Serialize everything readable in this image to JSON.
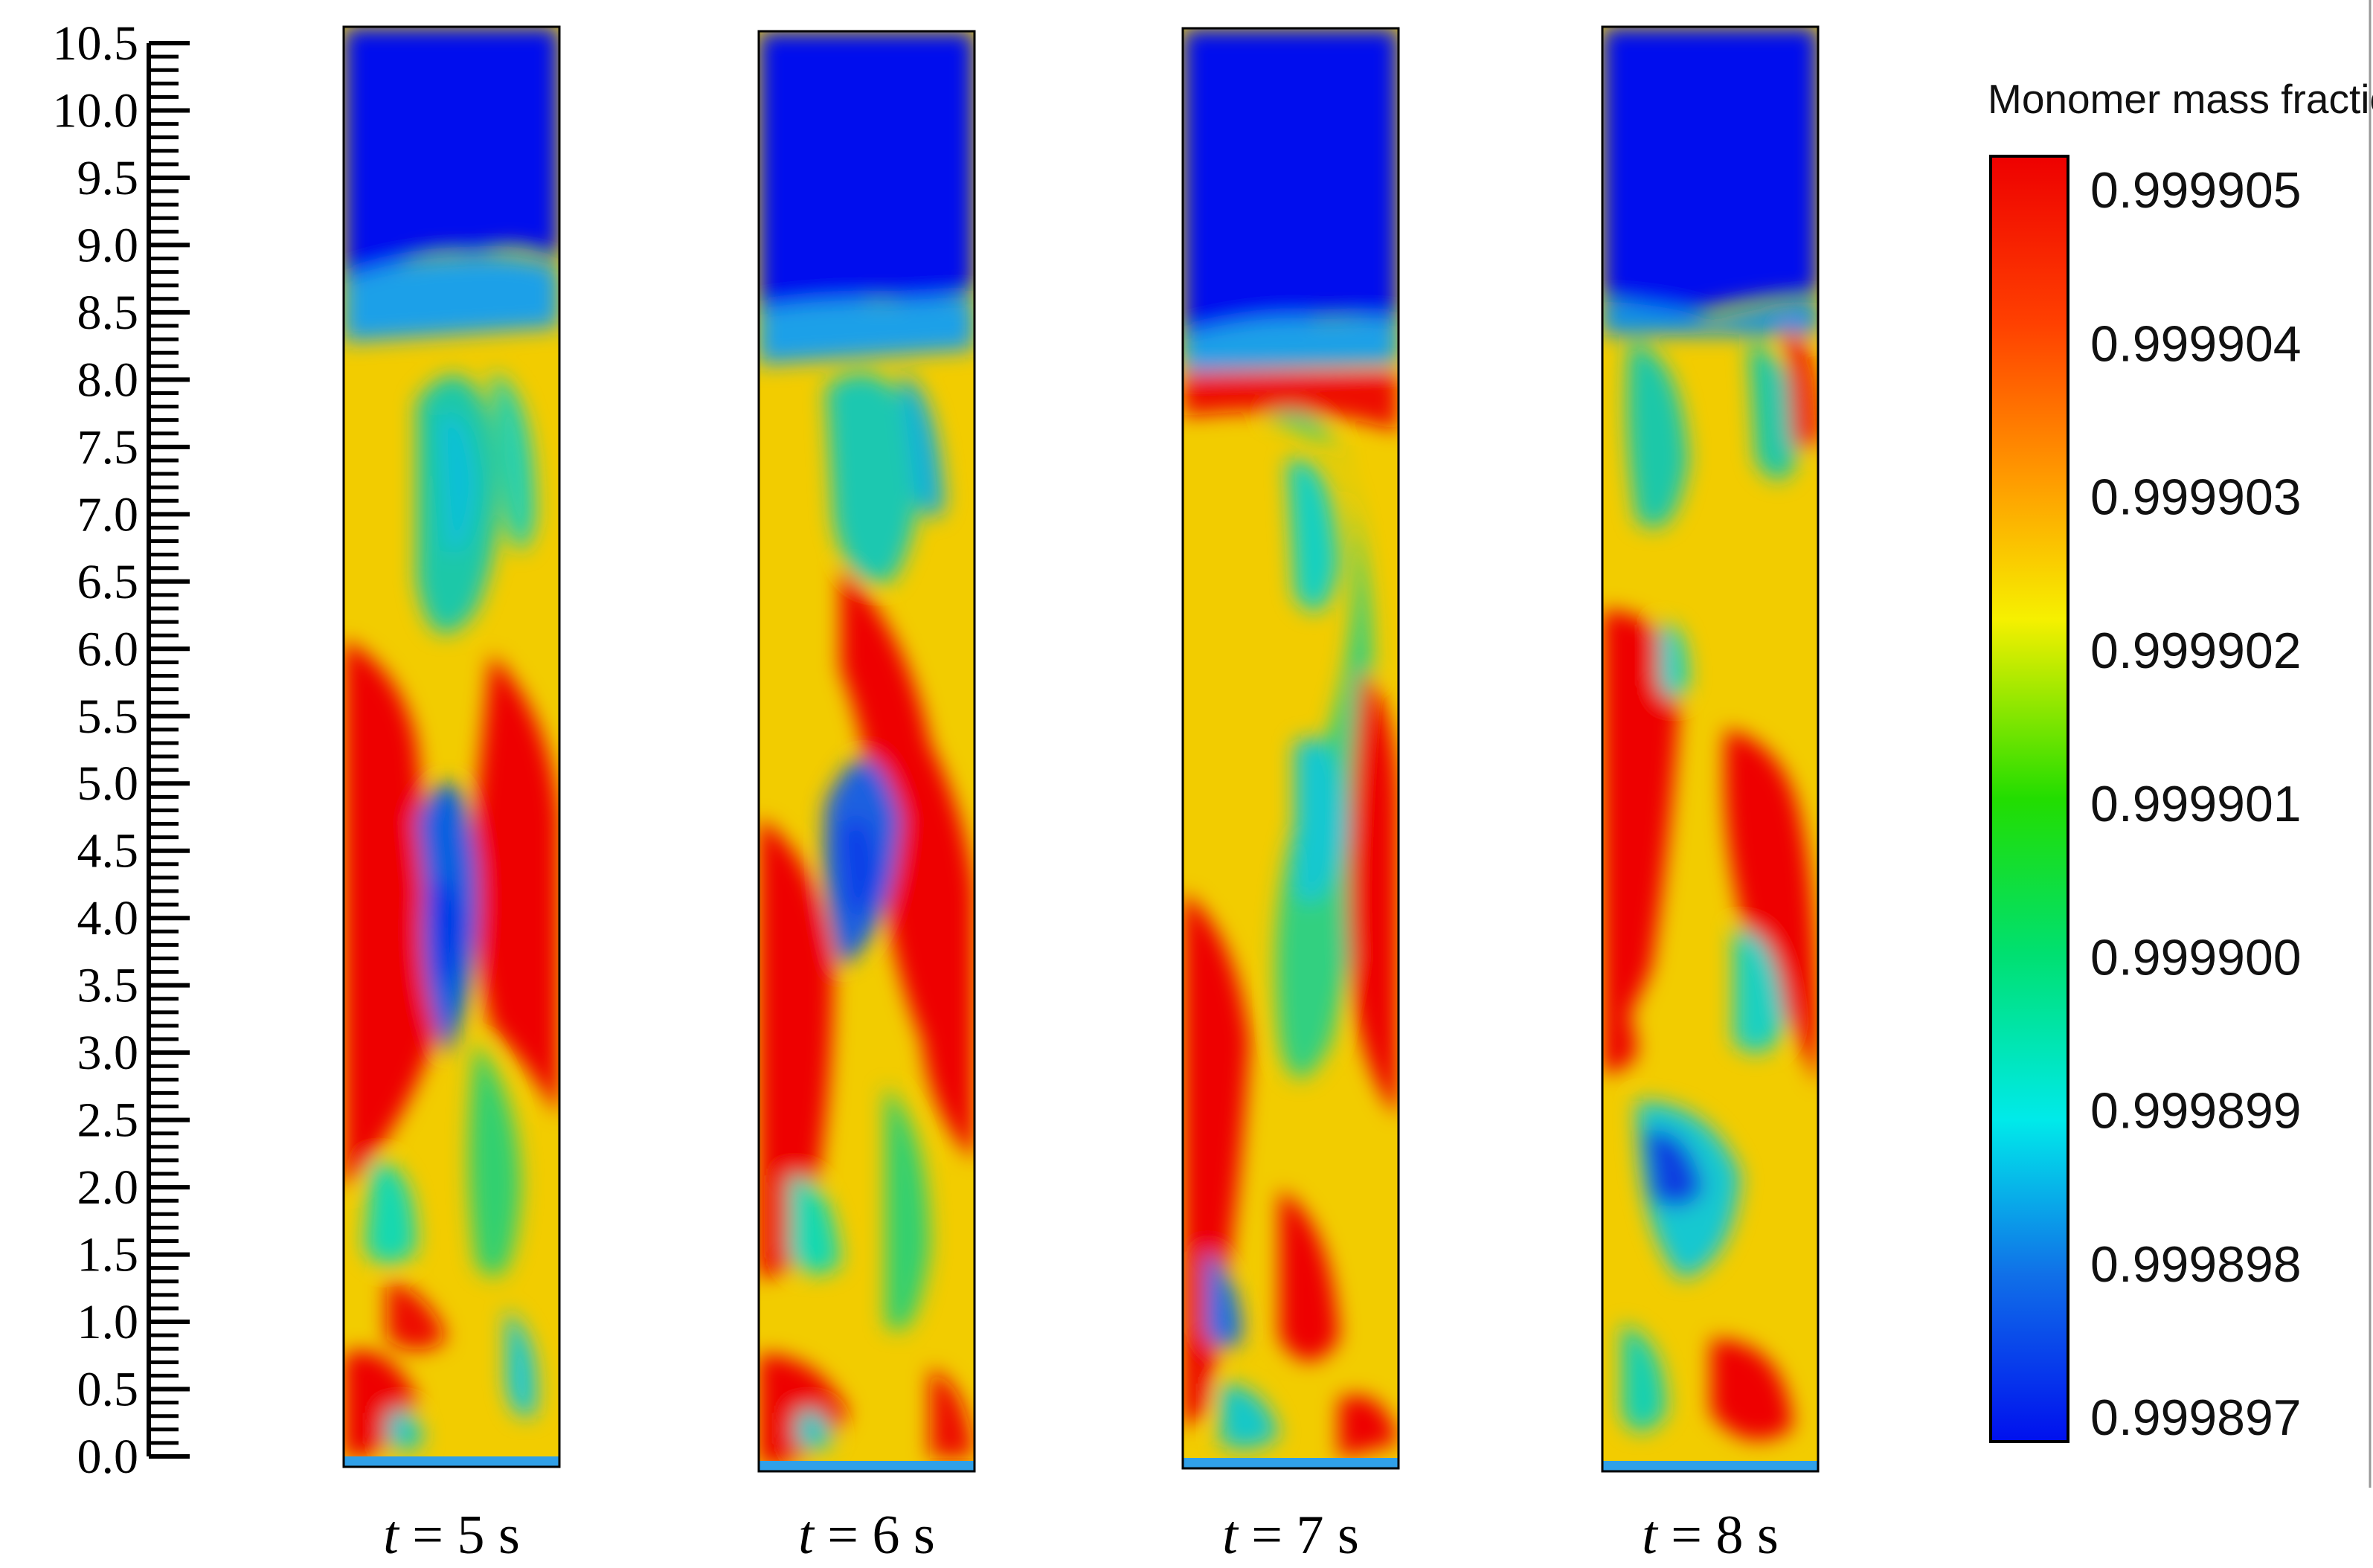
{
  "axis": {
    "ticks": [
      "10.5",
      "10.0",
      "9.5",
      "9.0",
      "8.5",
      "8.0",
      "7.5",
      "7.0",
      "6.5",
      "6.0",
      "5.5",
      "5.0",
      "4.5",
      "4.0",
      "3.5",
      "3.0",
      "2.5",
      "2.0",
      "1.5",
      "1.0",
      "0.5",
      "0.0"
    ]
  },
  "panels": [
    {
      "label_prefix": "t",
      "label_suffix": " = 5 s"
    },
    {
      "label_prefix": "t",
      "label_suffix": " = 6 s"
    },
    {
      "label_prefix": "t",
      "label_suffix": " = 7 s"
    },
    {
      "label_prefix": "t",
      "label_suffix": " = 8 s"
    }
  ],
  "legend": {
    "title": "Monomer mass fraction",
    "values": [
      "0.999905",
      "0.999904",
      "0.999903",
      "0.999902",
      "0.999901",
      "0.999900",
      "0.999899",
      "0.999898",
      "0.999897"
    ],
    "colors": {
      "top": "#ee0000",
      "orange": "#ff7a00",
      "yellow": "#f2ee00",
      "green": "#00dd00",
      "cyan": "#00e8e8",
      "blue": "#1050e0",
      "bottom": "#0010ee"
    }
  }
}
